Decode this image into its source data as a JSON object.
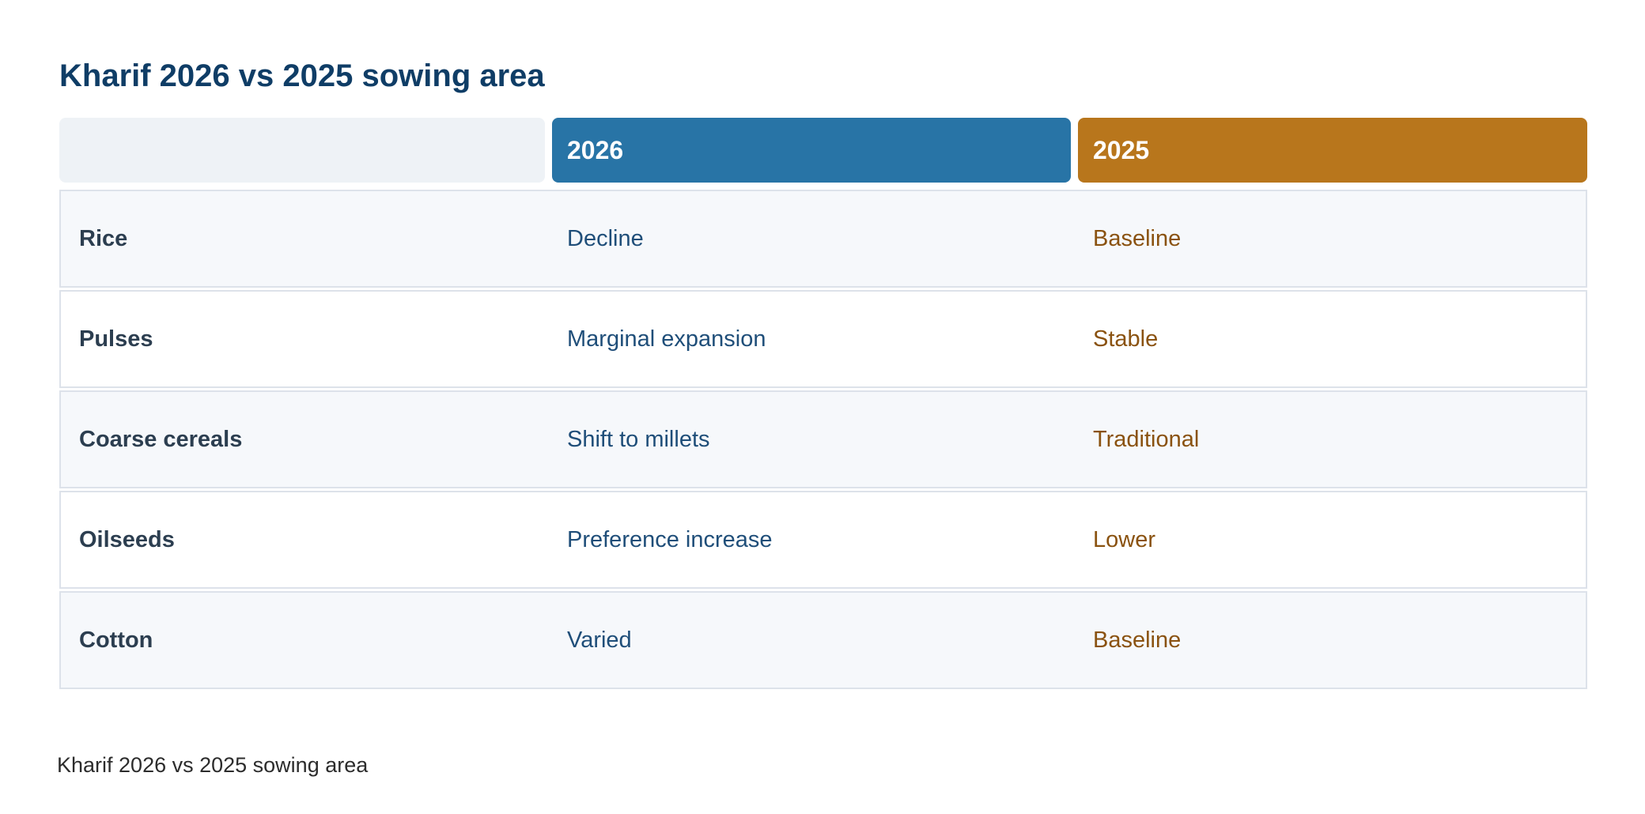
{
  "title": "Kharif 2026 vs 2025 sowing area",
  "caption": "Kharif 2026 vs 2025 sowing area",
  "colors": {
    "title": "#0f3d66",
    "header_2026": "#2874a6",
    "header_2025": "#b8761c",
    "text_2026": "#1f4e79",
    "text_2025": "#8a5210"
  },
  "chart_data": {
    "type": "table",
    "title": "Kharif 2026 vs 2025 sowing area",
    "columns": [
      "",
      "2026",
      "2025"
    ],
    "rows": [
      {
        "crop": "Rice",
        "2026": "Decline",
        "2025": "Baseline"
      },
      {
        "crop": "Pulses",
        "2026": "Marginal expansion",
        "2025": "Stable"
      },
      {
        "crop": "Coarse cereals",
        "2026": "Shift to millets",
        "2025": "Traditional"
      },
      {
        "crop": "Oilseeds",
        "2026": "Preference increase",
        "2025": "Lower"
      },
      {
        "crop": "Cotton",
        "2026": "Varied",
        "2025": "Baseline"
      }
    ]
  }
}
